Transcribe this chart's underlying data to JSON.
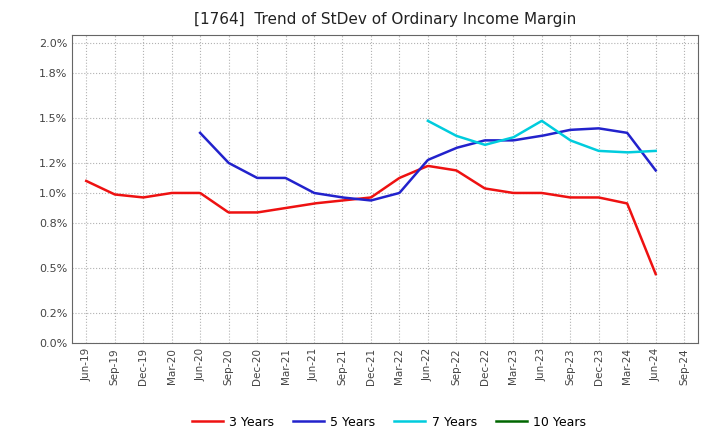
{
  "title": "[1764]  Trend of StDev of Ordinary Income Margin",
  "title_fontsize": 11,
  "background_color": "#ffffff",
  "grid_color": "#aaaaaa",
  "ylim": [
    0.0,
    0.0205
  ],
  "ytick_vals": [
    0.0,
    0.002,
    0.005,
    0.008,
    0.01,
    0.012,
    0.015,
    0.018,
    0.02
  ],
  "x_labels": [
    "Jun-19",
    "Sep-19",
    "Dec-19",
    "Mar-20",
    "Jun-20",
    "Sep-20",
    "Dec-20",
    "Mar-21",
    "Jun-21",
    "Sep-21",
    "Dec-21",
    "Mar-22",
    "Jun-22",
    "Sep-22",
    "Dec-22",
    "Mar-23",
    "Jun-23",
    "Sep-23",
    "Dec-23",
    "Mar-24",
    "Jun-24",
    "Sep-24"
  ],
  "series": {
    "3 Years": {
      "color": "#ee1111",
      "values": [
        0.0108,
        0.0099,
        0.0097,
        0.01,
        0.01,
        0.0087,
        0.0087,
        0.009,
        0.0093,
        0.0095,
        0.0097,
        0.011,
        0.0118,
        0.0115,
        0.0103,
        0.01,
        0.01,
        0.0097,
        0.0097,
        0.0093,
        0.0046,
        null
      ]
    },
    "5 Years": {
      "color": "#2222cc",
      "values": [
        null,
        null,
        null,
        null,
        0.014,
        0.012,
        0.011,
        0.011,
        0.01,
        0.0097,
        0.0095,
        0.01,
        0.0122,
        0.013,
        0.0135,
        0.0135,
        0.0138,
        0.0142,
        0.0143,
        0.014,
        0.0115,
        null
      ]
    },
    "7 Years": {
      "color": "#00ccdd",
      "values": [
        null,
        null,
        null,
        null,
        null,
        null,
        null,
        null,
        null,
        null,
        null,
        null,
        0.0148,
        0.0138,
        0.0132,
        0.0137,
        0.0148,
        0.0135,
        0.0128,
        0.0127,
        0.0128,
        null
      ]
    },
    "10 Years": {
      "color": "#006600",
      "values": [
        null,
        null,
        null,
        null,
        null,
        null,
        null,
        null,
        null,
        null,
        null,
        null,
        null,
        null,
        null,
        null,
        null,
        null,
        null,
        null,
        null,
        null
      ]
    }
  },
  "legend_labels": [
    "3 Years",
    "5 Years",
    "7 Years",
    "10 Years"
  ],
  "legend_colors": [
    "#ee1111",
    "#2222cc",
    "#00ccdd",
    "#006600"
  ]
}
